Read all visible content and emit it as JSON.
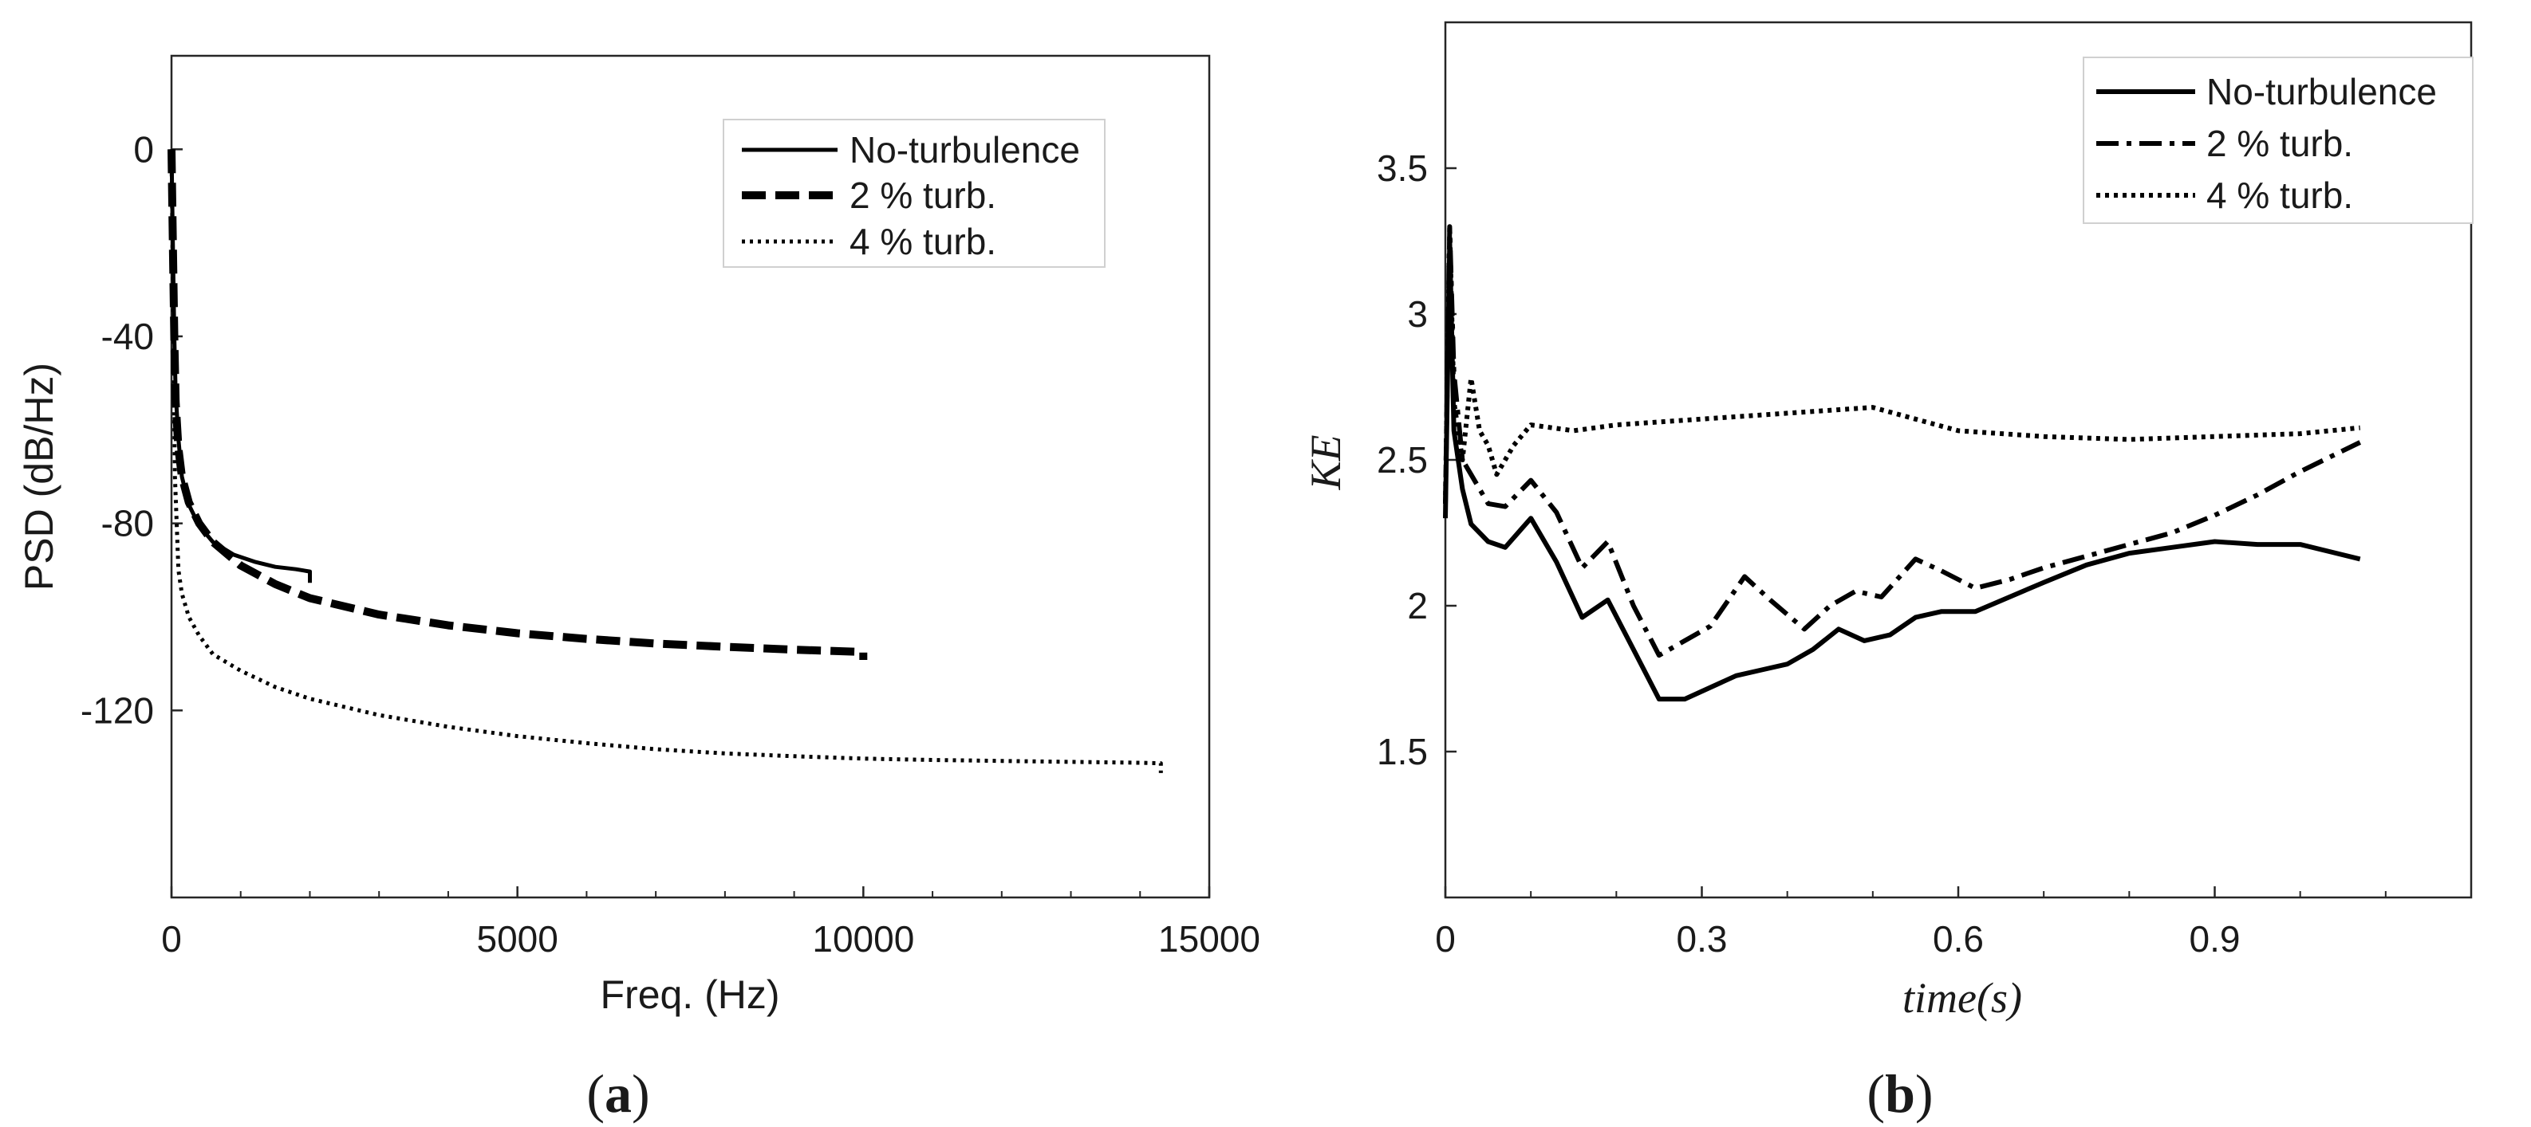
{
  "chart_data": [
    {
      "id": "a",
      "type": "line",
      "panel_label": "(a)",
      "panel_letter": "a",
      "xlabel": "Freq. (Hz)",
      "ylabel": "PSD (dB/Hz)",
      "xlim": [
        0,
        15000
      ],
      "ylim": [
        -160,
        20
      ],
      "xticks": [
        0,
        5000,
        10000,
        15000
      ],
      "xtick_labels": [
        "0",
        "5000",
        "10000",
        "15000"
      ],
      "yticks": [
        0,
        -40,
        -80,
        -120
      ],
      "ytick_labels": [
        "0",
        "-40",
        "-80",
        "-120"
      ],
      "legend": {
        "position": "top-right",
        "entries": [
          "No-turbulence",
          "2 % turb.",
          "4 % turb."
        ]
      },
      "series": [
        {
          "name": "No-turbulence",
          "style": "solid",
          "x": [
            0,
            20,
            40,
            60,
            100,
            150,
            250,
            400,
            600,
            900,
            1200,
            1500,
            1800,
            2000,
            2000
          ],
          "y": [
            0,
            -20,
            -40,
            -52,
            -62,
            -70,
            -76,
            -80.5,
            -84,
            -86.7,
            -88.2,
            -89.3,
            -89.8,
            -90.3,
            -92.7
          ]
        },
        {
          "name": "2 % turb.",
          "style": "dashed",
          "x": [
            0,
            20,
            40,
            60,
            100,
            150,
            250,
            400,
            600,
            1000,
            1500,
            2000,
            3000,
            4000,
            5000,
            6000,
            7000,
            8000,
            9000,
            10000,
            10000
          ],
          "y": [
            0,
            -20,
            -40,
            -54,
            -64,
            -70,
            -75.5,
            -80,
            -84,
            -89,
            -93,
            -96,
            -99.5,
            -101.8,
            -103.5,
            -104.7,
            -105.7,
            -106.4,
            -107,
            -107.5,
            -109.2
          ]
        },
        {
          "name": "4 % turb.",
          "style": "dotted",
          "x": [
            0,
            50,
            100,
            150,
            250,
            400,
            600,
            1000,
            1500,
            2000,
            3000,
            4000,
            5000,
            6000,
            7000,
            8000,
            9000,
            10000,
            11000,
            12000,
            13000,
            14000,
            14300,
            14300
          ],
          "y": [
            0,
            -70,
            -90,
            -95,
            -100,
            -104,
            -108,
            -111.5,
            -115,
            -117.5,
            -121,
            -123.5,
            -125.5,
            -127,
            -128.3,
            -129.2,
            -129.8,
            -130.3,
            -130.6,
            -130.8,
            -131,
            -131.2,
            -131.3,
            -133.4
          ]
        }
      ]
    },
    {
      "id": "b",
      "type": "line",
      "panel_label": "(b)",
      "panel_letter": "b",
      "xlabel": "time(s)",
      "ylabel": "KE",
      "xlim": [
        0,
        1.2
      ],
      "ylim": [
        1,
        4
      ],
      "xticks": [
        0,
        0.3,
        0.6,
        0.9
      ],
      "xtick_labels": [
        "0",
        "0.3",
        "0.6",
        "0.9"
      ],
      "yticks": [
        1.5,
        2,
        2.5,
        3,
        3.5
      ],
      "ytick_labels": [
        "1.5",
        "2",
        "2.5",
        "3",
        "3.5"
      ],
      "legend": {
        "position": "top-right",
        "entries": [
          "No-turbulence",
          "2 % turb.",
          "4 % turb."
        ]
      },
      "series": [
        {
          "name": "No-turbulence",
          "style": "solid",
          "x": [
            0,
            0.005,
            0.01,
            0.02,
            0.03,
            0.05,
            0.07,
            0.1,
            0.13,
            0.16,
            0.19,
            0.22,
            0.25,
            0.28,
            0.31,
            0.34,
            0.37,
            0.4,
            0.43,
            0.46,
            0.49,
            0.52,
            0.55,
            0.58,
            0.62,
            0.66,
            0.7,
            0.75,
            0.8,
            0.85,
            0.9,
            0.95,
            1.0,
            1.07
          ],
          "y": [
            2.3,
            3.25,
            2.6,
            2.4,
            2.28,
            2.22,
            2.2,
            2.3,
            2.15,
            1.96,
            2.02,
            1.85,
            1.68,
            1.68,
            1.72,
            1.76,
            1.78,
            1.8,
            1.85,
            1.92,
            1.88,
            1.9,
            1.96,
            1.98,
            1.98,
            2.03,
            2.08,
            2.14,
            2.18,
            2.2,
            2.22,
            2.21,
            2.21,
            2.16
          ]
        },
        {
          "name": "2 % turb.",
          "style": "dashdot",
          "x": [
            0,
            0.005,
            0.01,
            0.02,
            0.03,
            0.05,
            0.07,
            0.1,
            0.13,
            0.16,
            0.19,
            0.22,
            0.25,
            0.28,
            0.31,
            0.35,
            0.38,
            0.42,
            0.45,
            0.48,
            0.51,
            0.55,
            0.58,
            0.62,
            0.66,
            0.7,
            0.75,
            0.8,
            0.85,
            0.9,
            0.95,
            1.0,
            1.07
          ],
          "y": [
            2.35,
            3.3,
            2.8,
            2.5,
            2.45,
            2.35,
            2.34,
            2.43,
            2.32,
            2.13,
            2.22,
            2.0,
            1.83,
            1.88,
            1.93,
            2.1,
            2.02,
            1.92,
            2.0,
            2.05,
            2.03,
            2.16,
            2.12,
            2.06,
            2.09,
            2.13,
            2.17,
            2.21,
            2.25,
            2.31,
            2.38,
            2.46,
            2.56
          ]
        },
        {
          "name": "4 % turb.",
          "style": "dotted",
          "x": [
            0,
            0.005,
            0.01,
            0.02,
            0.03,
            0.04,
            0.05,
            0.06,
            0.08,
            0.1,
            0.15,
            0.2,
            0.3,
            0.4,
            0.5,
            0.55,
            0.6,
            0.7,
            0.8,
            0.9,
            1.0,
            1.07
          ],
          "y": [
            2.35,
            3.3,
            2.7,
            2.5,
            2.78,
            2.6,
            2.55,
            2.45,
            2.55,
            2.62,
            2.6,
            2.62,
            2.64,
            2.66,
            2.68,
            2.64,
            2.6,
            2.58,
            2.57,
            2.58,
            2.59,
            2.61
          ]
        }
      ]
    }
  ]
}
